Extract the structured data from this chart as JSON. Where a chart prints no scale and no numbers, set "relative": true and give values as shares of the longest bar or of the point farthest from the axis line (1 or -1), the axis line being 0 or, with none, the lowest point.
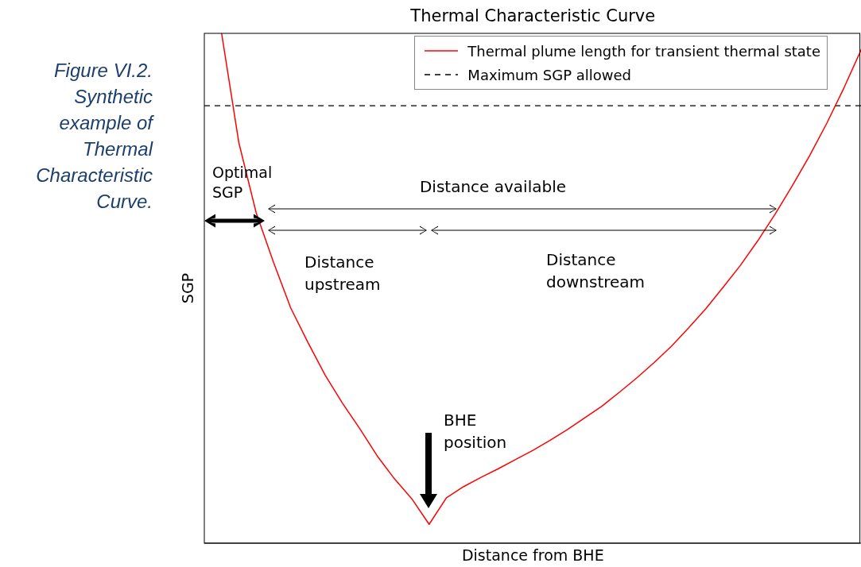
{
  "chart_data": {
    "type": "line",
    "title": "Thermal Characteristic Curve",
    "xlabel": "Distance from BHE",
    "ylabel": "SGP",
    "relative": true,
    "legend": "top right",
    "categories": [
      null,
      null,
      null,
      null,
      null,
      null,
      null,
      null,
      null,
      null,
      null,
      null,
      null,
      null,
      null,
      null,
      null,
      null,
      null,
      null,
      null,
      null,
      null,
      null,
      null,
      null,
      null,
      null,
      null,
      null,
      null,
      null,
      null,
      null,
      null,
      null,
      null,
      null,
      null
    ],
    "series": [
      {
        "name": "Thermal plume length for transient thermal state",
        "color": "#ff0000",
        "values": [
          null,
          1.0,
          0.785,
          0.648,
          0.551,
          0.461,
          0.393,
          0.329,
          0.274,
          0.224,
          0.171,
          0.126,
          0.087,
          0.037,
          0.089,
          0.111,
          0.129,
          0.146,
          0.164,
          0.182,
          0.202,
          0.223,
          0.246,
          0.269,
          0.296,
          0.324,
          0.354,
          0.386,
          0.422,
          0.46,
          0.502,
          0.545,
          0.593,
          0.645,
          0.701,
          0.76,
          0.824,
          0.894,
          0.969
        ]
      }
    ],
    "ref_lines": [
      {
        "axis": "y",
        "value": 0.858,
        "label": "Maximum SGP allowed",
        "line_style": "dashed",
        "color": "#000000"
      }
    ],
    "annotations": [
      "Figure VI.2. Synthetic example of Thermal Characteristic Curve.",
      "Optimal SGP",
      "Distance available",
      "Distance upstream",
      "Distance downstream",
      "BHE position"
    ]
  }
}
